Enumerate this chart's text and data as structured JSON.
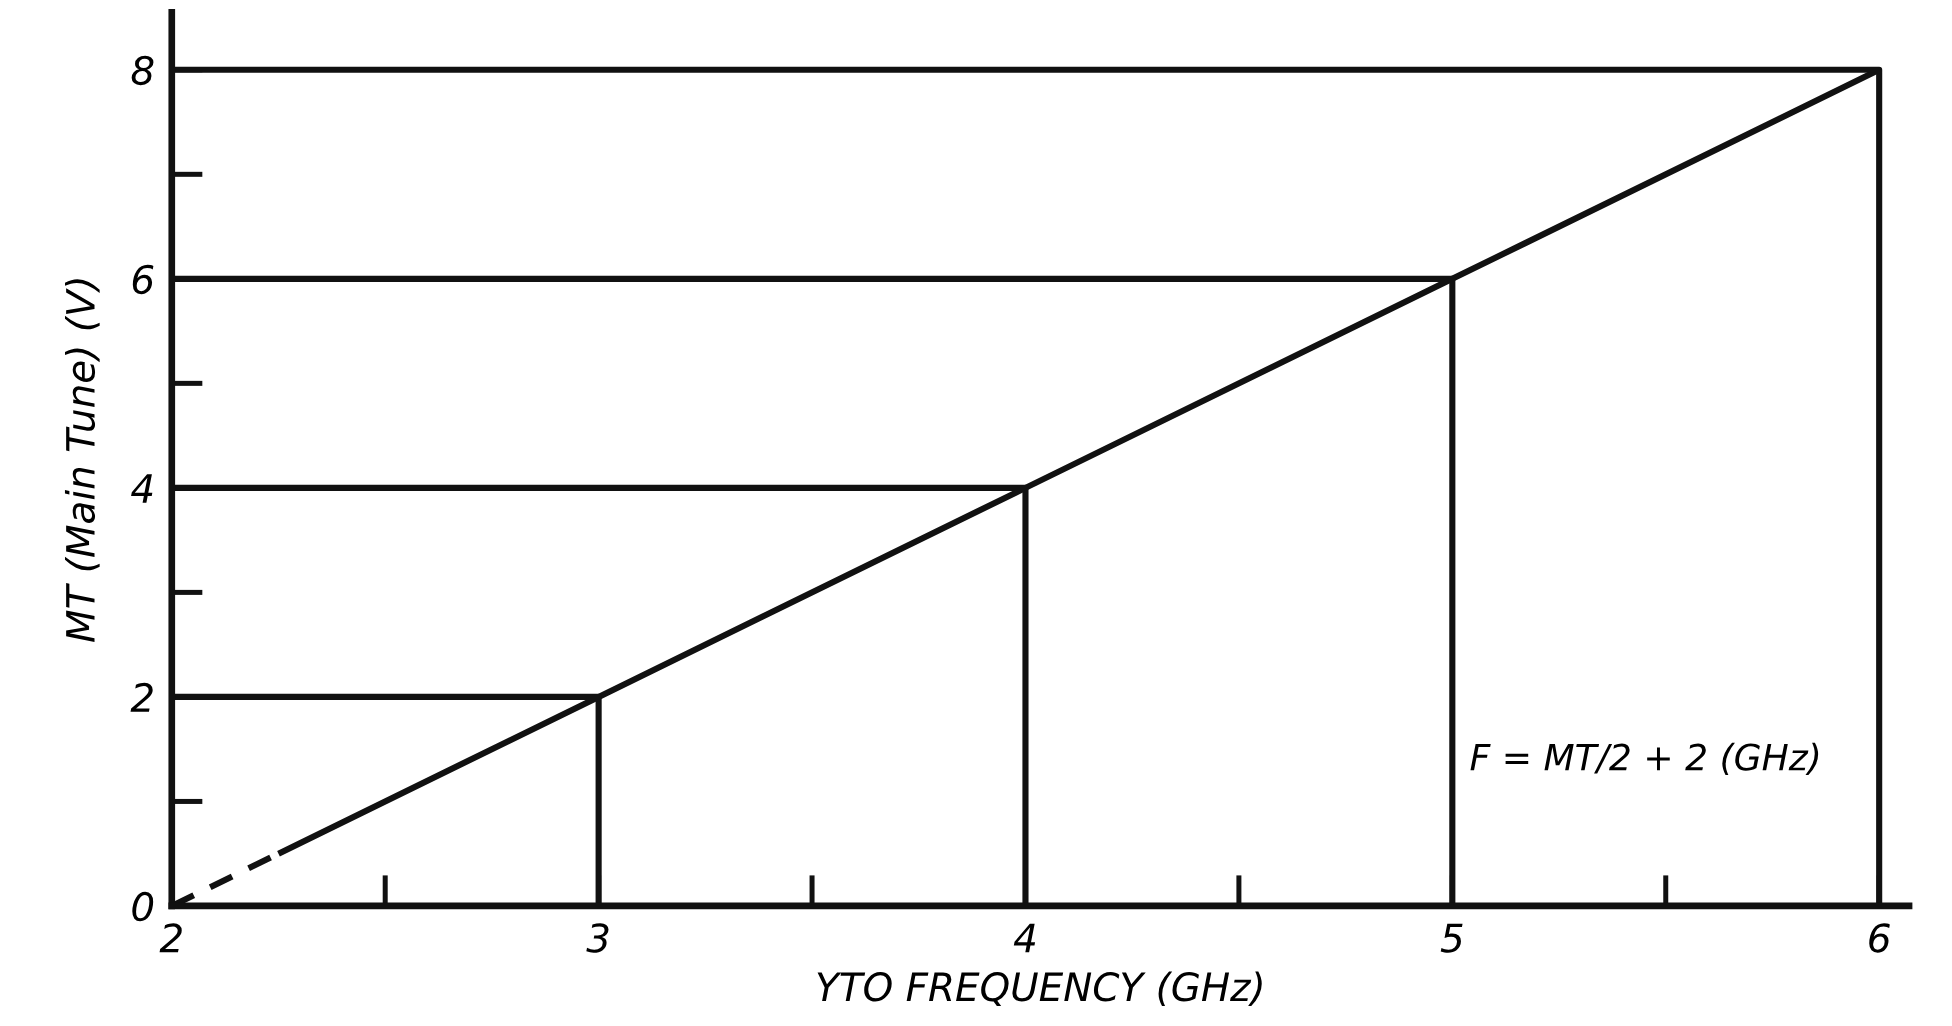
{
  "chart_data": {
    "type": "line",
    "xlabel": "YTO FREQUENCY (GHz)",
    "ylabel": "MT (Main Tune) (V)",
    "annotations": [
      "F = MT/2 + 2 (GHz)"
    ],
    "series": [
      {
        "color": "#111111",
        "x": [
          2,
          2.25
        ],
        "values": [
          0,
          0.5
        ],
        "line_style": "dashed"
      },
      {
        "color": "#111111",
        "x": [
          2.25,
          3,
          4,
          5,
          6
        ],
        "values": [
          0.5,
          2,
          4,
          6,
          8
        ],
        "line_style": "solid"
      },
      {
        "color": "#111111",
        "x": [
          2,
          3,
          3
        ],
        "values": [
          2,
          2,
          0
        ],
        "line_style": "solid"
      },
      {
        "color": "#111111",
        "x": [
          2,
          4,
          4
        ],
        "values": [
          4,
          4,
          0
        ],
        "line_style": "solid"
      },
      {
        "color": "#111111",
        "x": [
          2,
          5,
          5
        ],
        "values": [
          6,
          6,
          0
        ],
        "line_style": "solid"
      },
      {
        "color": "#111111",
        "x": [
          2,
          6,
          6
        ],
        "values": [
          8,
          8,
          0
        ],
        "line_style": "solid"
      }
    ],
    "xlim": [
      2,
      6.07
    ],
    "ylim": [
      0,
      8.55
    ],
    "xticks": [
      2,
      {
        "value": 2.5,
        "label": null
      },
      3,
      {
        "value": 3.5,
        "label": null
      },
      4,
      {
        "value": 4.5,
        "label": null
      },
      5,
      {
        "value": 5.5,
        "label": null
      },
      6
    ],
    "yticks": [
      0,
      {
        "value": 1,
        "label": null
      },
      2,
      {
        "value": 3,
        "label": null
      },
      4,
      {
        "value": 5,
        "label": null
      },
      6,
      {
        "value": 7,
        "label": null
      },
      8
    ],
    "marker": "none"
  }
}
